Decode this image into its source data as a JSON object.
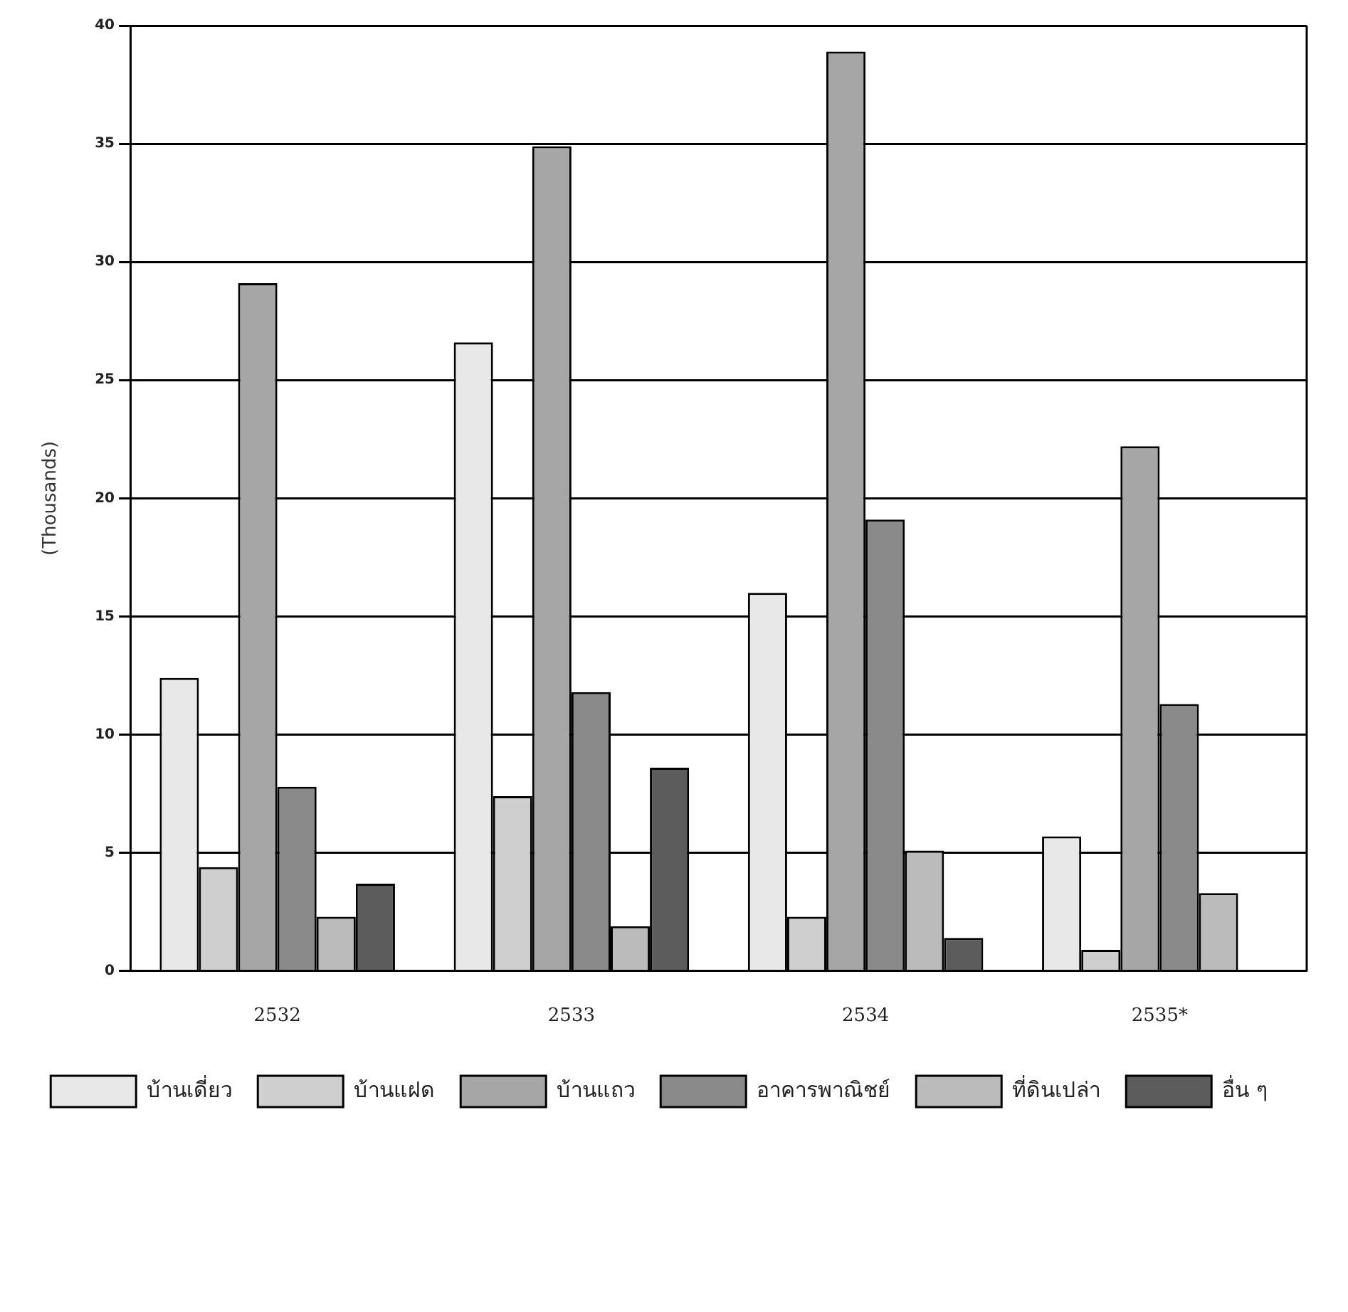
{
  "chart_data": {
    "type": "bar",
    "ylabel": "(Thousands)",
    "categories": [
      "2532",
      "2533",
      "2534",
      "2535*"
    ],
    "series": [
      {
        "name": "บ้านเดี่ยว",
        "color": "#e8e8e8",
        "values": [
          12.4,
          26.6,
          16.0,
          5.7
        ]
      },
      {
        "name": "บ้านแฝด",
        "color": "#cfcfcf",
        "values": [
          4.4,
          7.4,
          2.3,
          0.9
        ]
      },
      {
        "name": "บ้านแถว",
        "color": "#a6a6a6",
        "values": [
          29.1,
          34.9,
          38.9,
          22.2
        ]
      },
      {
        "name": "อาคารพาณิชย์",
        "color": "#8a8a8a",
        "values": [
          7.8,
          11.8,
          19.1,
          11.3
        ]
      },
      {
        "name": "ที่ดินเปล่า",
        "color": "#bbbbbb",
        "values": [
          2.3,
          1.9,
          5.1,
          3.3
        ]
      },
      {
        "name": "อื่น ๆ",
        "color": "#5c5c5c",
        "values": [
          3.7,
          8.6,
          1.4,
          0
        ]
      }
    ],
    "ylim": [
      0,
      40
    ],
    "yticks": [
      0,
      5,
      10,
      15,
      20,
      25,
      30,
      35,
      40
    ],
    "grid": "y",
    "legend": "bottom"
  }
}
